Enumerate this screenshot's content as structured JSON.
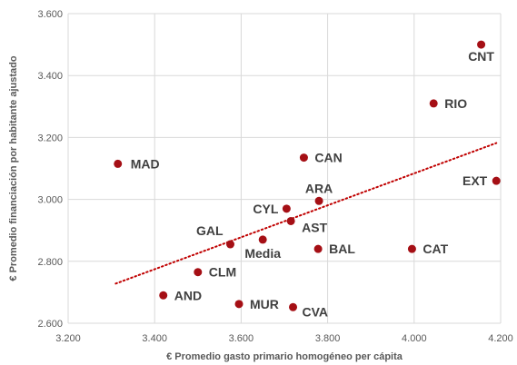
{
  "chart_data": {
    "type": "scatter",
    "title": "",
    "xlabel": "€ Promedio gasto primario homogéneo per cápita",
    "ylabel": "€ Promedio financiación por habitante ajustado",
    "xlim": [
      3200,
      4200
    ],
    "ylim": [
      2600,
      3600
    ],
    "xticks": [
      3200,
      3400,
      3600,
      3800,
      4000,
      4200
    ],
    "xtick_labels": [
      "3.200",
      "3.400",
      "3.600",
      "3.800",
      "4.000",
      "4.200"
    ],
    "yticks": [
      2600,
      2800,
      3000,
      3200,
      3400,
      3600
    ],
    "ytick_labels": [
      "2.600",
      "2.800",
      "3.000",
      "3.200",
      "3.400",
      "3.600"
    ],
    "grid": true,
    "marker_color": "#A50F15",
    "trendline": {
      "style": "dotted",
      "color": "#C00000",
      "x": [
        3310,
        4190
      ],
      "y": [
        2728,
        3182
      ]
    },
    "points": [
      {
        "label": "CNT",
        "x": 4155,
        "y": 3500
      },
      {
        "label": "RIO",
        "x": 4045,
        "y": 3310
      },
      {
        "label": "MAD",
        "x": 3315,
        "y": 3115
      },
      {
        "label": "CAN",
        "x": 3745,
        "y": 3135
      },
      {
        "label": "EXT",
        "x": 4190,
        "y": 3060
      },
      {
        "label": "ARA",
        "x": 3780,
        "y": 2995
      },
      {
        "label": "CYL",
        "x": 3705,
        "y": 2970
      },
      {
        "label": "AST",
        "x": 3715,
        "y": 2930
      },
      {
        "label": "GAL",
        "x": 3575,
        "y": 2855
      },
      {
        "label": "Media",
        "x": 3650,
        "y": 2870
      },
      {
        "label": "BAL",
        "x": 3778,
        "y": 2840
      },
      {
        "label": "CAT",
        "x": 3995,
        "y": 2840
      },
      {
        "label": "CLM",
        "x": 3500,
        "y": 2765
      },
      {
        "label": "AND",
        "x": 3420,
        "y": 2690
      },
      {
        "label": "MUR",
        "x": 3595,
        "y": 2662
      },
      {
        "label": "CVA",
        "x": 3720,
        "y": 2652
      }
    ]
  }
}
